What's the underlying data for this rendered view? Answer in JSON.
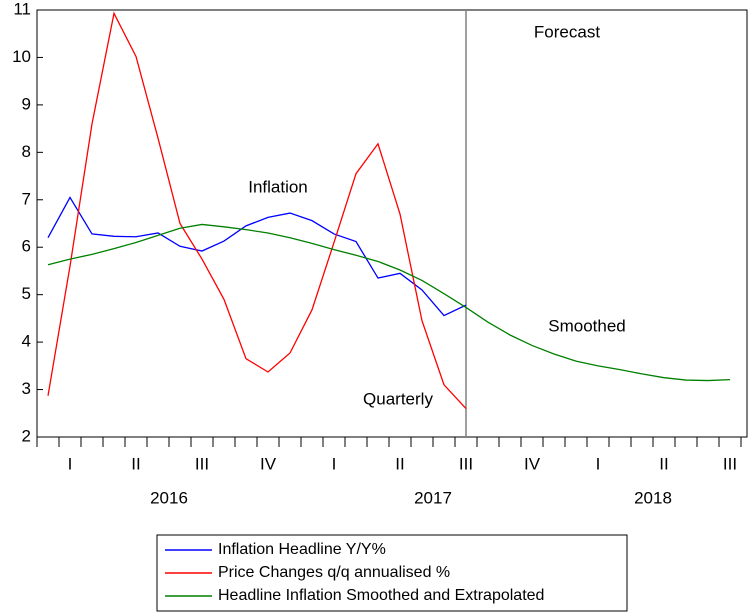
{
  "chart_data": {
    "type": "line",
    "categories": [
      null,
      "I",
      null,
      null,
      "II",
      null,
      null,
      "III",
      null,
      null,
      "IV",
      null,
      null,
      "I",
      null,
      null,
      "II",
      null,
      null,
      "III",
      null,
      null,
      "IV",
      null,
      null,
      "I",
      null,
      null,
      "II",
      null,
      null,
      "III"
    ],
    "x_groups": [
      "2016",
      "2017",
      "2018"
    ],
    "series": [
      {
        "name": "Inflation Headline Y/Y%",
        "color": "#0000ff",
        "values": [
          6.2,
          7.05,
          6.28,
          6.23,
          6.22,
          6.3,
          6.02,
          5.92,
          6.13,
          6.45,
          6.63,
          6.72,
          6.56,
          6.28,
          6.12,
          5.35,
          5.45,
          5.1,
          4.56,
          4.78,
          null,
          null,
          null,
          null,
          null,
          null,
          null,
          null,
          null,
          null,
          null,
          null
        ]
      },
      {
        "name": "Price Changes q/q annualised %",
        "color": "#ff0000",
        "values": [
          2.87,
          5.6,
          8.6,
          10.93,
          10.02,
          8.3,
          6.5,
          5.75,
          4.9,
          3.65,
          3.37,
          3.77,
          4.68,
          6.1,
          7.55,
          8.18,
          6.7,
          4.45,
          3.1,
          2.6,
          null,
          null,
          null,
          null,
          null,
          null,
          null,
          null,
          null,
          null,
          null,
          null
        ]
      },
      {
        "name": "Headline Inflation Smoothed and Extrapolated",
        "color": "#008000",
        "values": [
          5.63,
          5.75,
          5.85,
          5.97,
          6.1,
          6.25,
          6.4,
          6.48,
          6.43,
          6.37,
          6.3,
          6.2,
          6.08,
          5.95,
          5.83,
          5.7,
          5.52,
          5.3,
          5.02,
          4.73,
          4.42,
          4.15,
          3.93,
          3.75,
          3.6,
          3.5,
          3.42,
          3.33,
          3.25,
          3.2,
          3.19,
          3.21
        ]
      }
    ],
    "annotations": [
      "Forecast",
      "Inflation",
      "Smoothed",
      "Quarterly"
    ],
    "ylim": [
      2,
      11
    ],
    "yticks": [
      2,
      3,
      4,
      5,
      6,
      7,
      8,
      9,
      10,
      11
    ]
  }
}
